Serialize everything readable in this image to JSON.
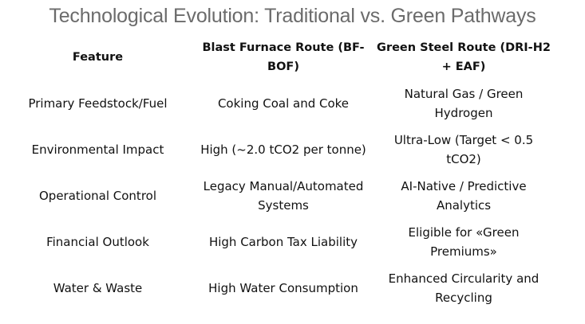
{
  "title": "Technological Evolution: Traditional vs. Green Pathways",
  "table": {
    "header": [
      "Feature",
      "Blast Furnace Route (BF-BOF)",
      "Green Steel Route (DRI-H2 + EAF)"
    ],
    "rows": [
      [
        "Primary Feedstock/Fuel",
        "Coking Coal and Coke",
        "Natural Gas / Green Hydrogen"
      ],
      [
        "Environmental Impact",
        "High (~2.0 tCO2 per tonne)",
        "Ultra-Low (Target < 0.5 tCO2)"
      ],
      [
        "Operational Control",
        "Legacy Manual/Automated Systems",
        "AI-Native / Predictive Analytics"
      ],
      [
        "Financial Outlook",
        "High Carbon Tax Liability",
        "Eligible for «Green Premiums»"
      ],
      [
        "Water & Waste",
        "High Water Consumption",
        "Enhanced Circularity and Recycling"
      ]
    ]
  }
}
